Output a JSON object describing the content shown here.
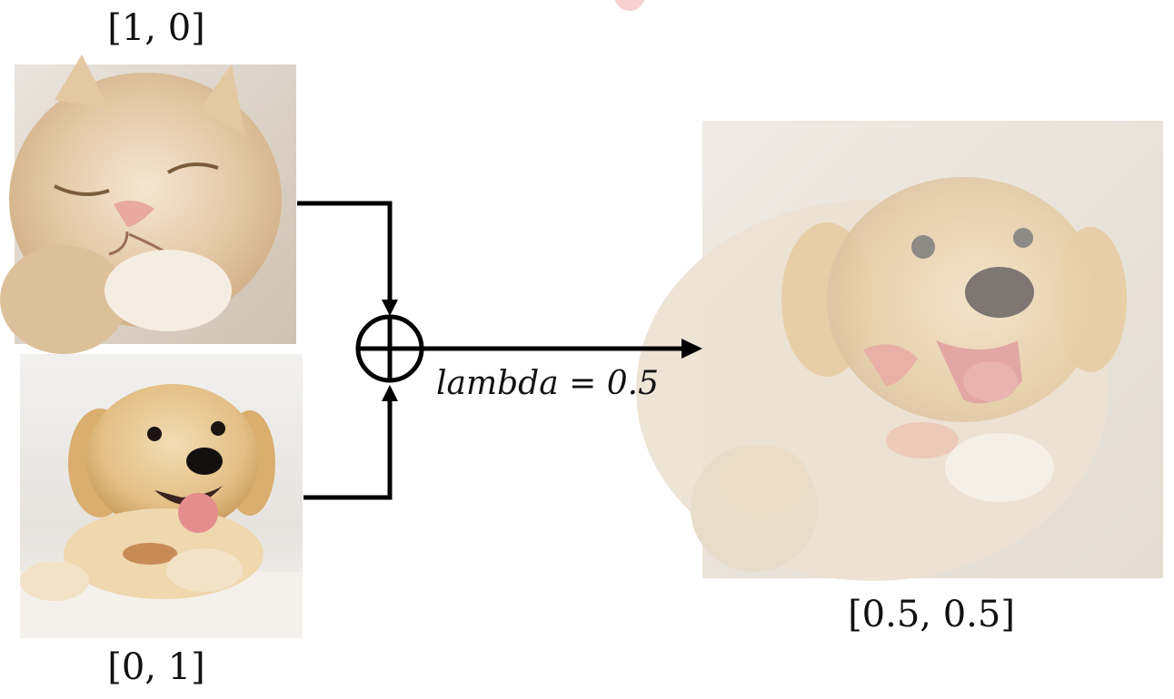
{
  "labels": {
    "cat": "[1, 0]",
    "dog": "[0, 1]",
    "mixed": "[0.5, 0.5]",
    "lambda": "lambda = 0.5"
  },
  "images": {
    "cat": "cat-photo",
    "dog": "puppy-photo",
    "mixed": "cat-dog-mixup-blend"
  },
  "operator": "plus-circle-icon",
  "colors": {
    "line": "#000000",
    "text": "#111111"
  }
}
